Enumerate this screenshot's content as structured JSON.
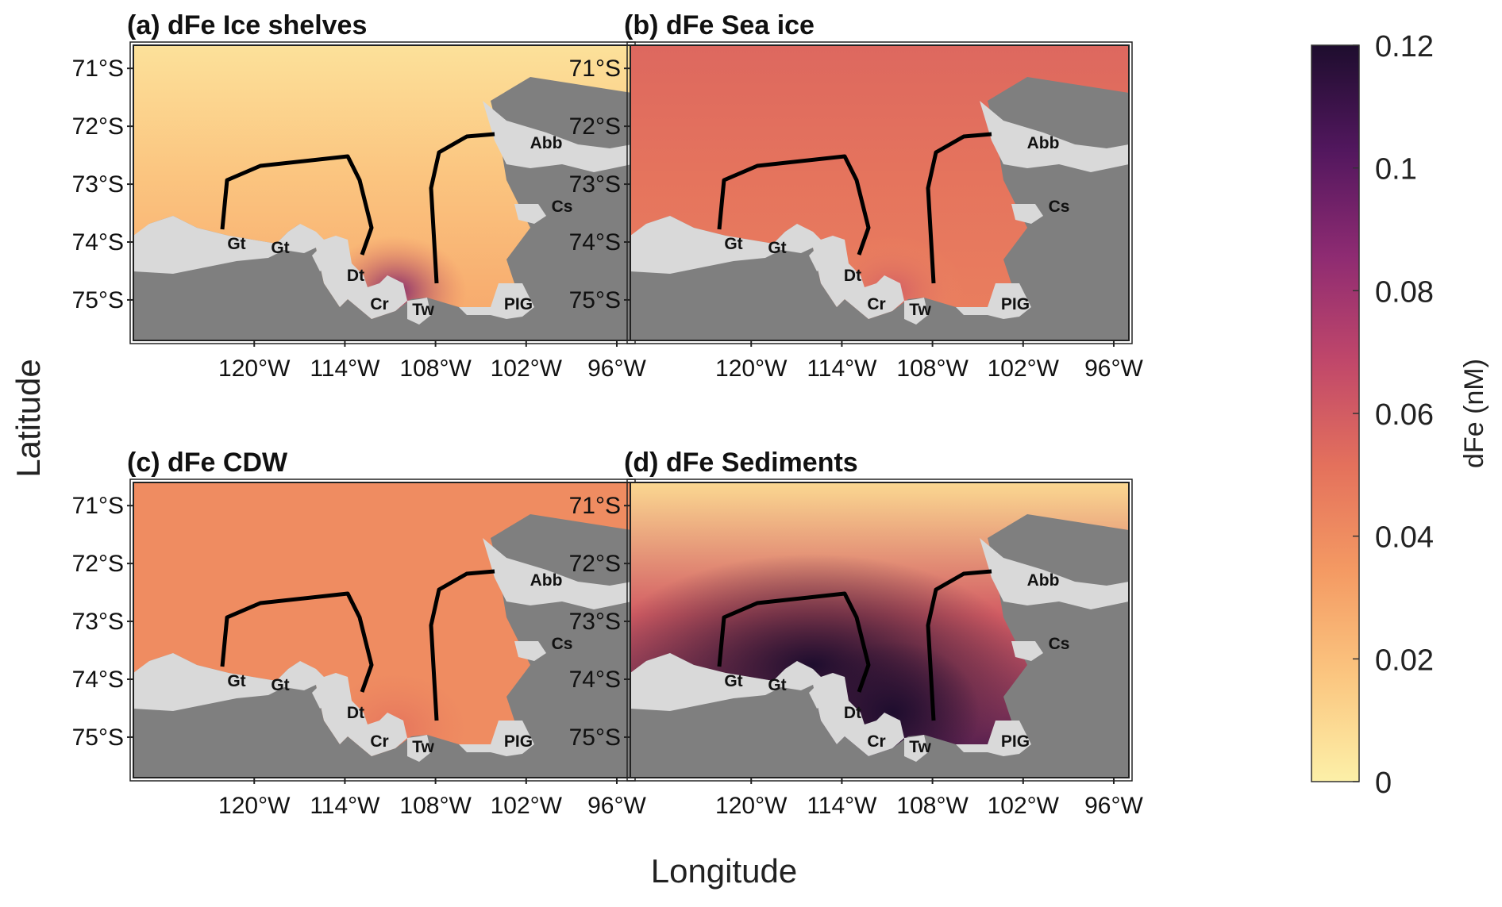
{
  "chart_data": {
    "type": "heatmap",
    "xlabel": "Longitude",
    "ylabel": "Latitude",
    "colorbar": {
      "label": "dFe (nM)",
      "range": [
        0,
        0.12
      ],
      "ticks": [
        "0",
        "0.02",
        "0.04",
        "0.06",
        "0.08",
        "0.1",
        "0.12"
      ],
      "colors": [
        "#fcf0a8",
        "#fbc680",
        "#f49a63",
        "#e4715c",
        "#c0476a",
        "#8e2b72",
        "#52175e",
        "#1e0d2e"
      ]
    },
    "lon_ticks": [
      "120°W",
      "114°W",
      "108°W",
      "102°W",
      "96°W"
    ],
    "lon_range": [
      -128,
      -95
    ],
    "lat_ticks": [
      "71°S",
      "72°S",
      "73°S",
      "74°S",
      "75°S"
    ],
    "lat_range": [
      -75.7,
      -70.6
    ],
    "place_labels": [
      "Gt",
      "Gt",
      "Dt",
      "Cr",
      "Tw",
      "PIG",
      "Cs",
      "Abb"
    ],
    "panels": [
      {
        "title": "(a) dFe Ice shelves",
        "offshore_dFe": 0.006,
        "shelf_dFe": 0.03,
        "nearshore_dFe": 0.05,
        "max_dFe": 0.09
      },
      {
        "title": "(b) dFe Sea ice",
        "offshore_dFe": 0.055,
        "shelf_dFe": 0.045,
        "nearshore_dFe": 0.04,
        "max_dFe": 0.06
      },
      {
        "title": "(c) dFe CDW",
        "offshore_dFe": 0.04,
        "shelf_dFe": 0.04,
        "nearshore_dFe": 0.045,
        "max_dFe": 0.05
      },
      {
        "title": "(d) dFe Sediments",
        "offshore_dFe": 0.01,
        "shelf_dFe": 0.11,
        "nearshore_dFe": 0.12,
        "max_dFe": 0.12
      }
    ]
  }
}
